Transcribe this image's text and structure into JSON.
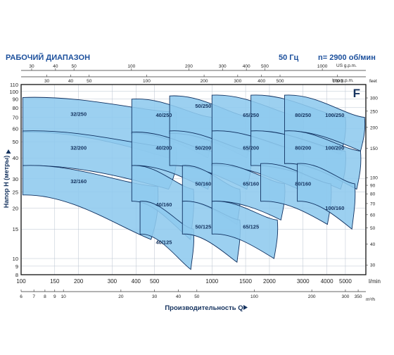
{
  "chart_data": {
    "type": "area",
    "title": "РАБОЧИЙ ДИАПАЗОН",
    "subtitle_freq": "50 Гц",
    "subtitle_speed": "n= 2900 об/мин",
    "corner_letter": "F",
    "xlabel": "Производительность Q",
    "ylabel": "Напор H (метры)",
    "x_scale": "log",
    "y_scale": "log",
    "xlim_lmin": [
      100,
      6400
    ],
    "ylim_m": [
      8,
      110
    ],
    "grid": true,
    "bottom_lmin_ticks": [
      "100",
      "150",
      "200",
      "300",
      "400",
      "500",
      "1000",
      "1500",
      "2000",
      "3000",
      "4000",
      "5000"
    ],
    "bottom_lmin_unit": "l/min",
    "bottom_m3h_ticks": [
      "6",
      "7",
      "8",
      "9",
      "10",
      "20",
      "30",
      "40",
      "50",
      "100",
      "200",
      "300",
      "350"
    ],
    "bottom_m3h_unit": "m³/h",
    "top_us_ticks": [
      "30",
      "40",
      "50",
      "100",
      "200",
      "300",
      "400",
      "500",
      "1000"
    ],
    "top_us_unit": "US g.p.m.",
    "top_imp_ticks": [
      "30",
      "40",
      "50",
      "100",
      "200",
      "300",
      "400",
      "500",
      "1000"
    ],
    "top_imp_unit": "Imp g.p.m.",
    "left_m_ticks": [
      "8",
      "9",
      "10",
      "15",
      "20",
      "25",
      "30",
      "40",
      "50",
      "60",
      "70",
      "80",
      "90",
      "100",
      "110"
    ],
    "right_feet_unit": "feet",
    "right_feet_ticks": [
      "300",
      "250",
      "200",
      "150",
      "100",
      "90",
      "80",
      "70",
      "60",
      "50",
      "40",
      "30"
    ],
    "series": [
      {
        "name": "32/250",
        "q": [
          102,
          650
        ],
        "h_top": [
          92,
          75
        ],
        "h_bot": [
          57,
          40
        ],
        "label_q": 200,
        "label_h": 73
      },
      {
        "name": "32/200",
        "q": [
          102,
          650
        ],
        "h_top": [
          58,
          46
        ],
        "h_bot": [
          36,
          26
        ],
        "label_q": 200,
        "label_h": 46
      },
      {
        "name": "32/160",
        "q": [
          102,
          520
        ],
        "h_top": [
          36,
          27
        ],
        "h_bot": [
          24,
          13
        ],
        "label_q": 200,
        "label_h": 29
      },
      {
        "name": "40/250",
        "q": [
          380,
          1000
        ],
        "h_top": [
          90,
          70
        ],
        "h_bot": [
          56,
          40
        ],
        "label_q": 560,
        "label_h": 72
      },
      {
        "name": "40/200",
        "q": [
          380,
          1000
        ],
        "h_top": [
          57,
          44
        ],
        "h_bot": [
          36,
          26
        ],
        "label_q": 560,
        "label_h": 46
      },
      {
        "name": "40/160",
        "q": [
          380,
          800
        ],
        "h_top": [
          36,
          26
        ],
        "h_bot": [
          22,
          13
        ],
        "label_q": 560,
        "label_h": 21
      },
      {
        "name": "40/125",
        "q": [
          420,
          800
        ],
        "h_top": [
          22,
          15
        ],
        "h_bot": [
          14,
          8.6
        ],
        "label_q": 560,
        "label_h": 12.5
      },
      {
        "name": "50/250",
        "q": [
          600,
          1600
        ],
        "h_top": [
          94,
          70
        ],
        "h_bot": [
          56,
          40
        ],
        "label_q": 900,
        "label_h": 82
      },
      {
        "name": "50/200",
        "q": [
          600,
          1600
        ],
        "h_top": [
          58,
          44
        ],
        "h_bot": [
          36,
          26
        ],
        "label_q": 900,
        "label_h": 46
      },
      {
        "name": "50/160",
        "q": [
          700,
          1400
        ],
        "h_top": [
          36,
          26
        ],
        "h_bot": [
          22,
          16
        ],
        "label_q": 900,
        "label_h": 28
      },
      {
        "name": "50/125",
        "q": [
          700,
          1400
        ],
        "h_top": [
          22,
          17
        ],
        "h_bot": [
          14,
          9.5
        ],
        "label_q": 900,
        "label_h": 15.5
      },
      {
        "name": "65/250",
        "q": [
          1000,
          3000
        ],
        "h_top": [
          95,
          70
        ],
        "h_bot": [
          58,
          42
        ],
        "label_q": 1600,
        "label_h": 72
      },
      {
        "name": "65/200",
        "q": [
          1000,
          3000
        ],
        "h_top": [
          58,
          44
        ],
        "h_bot": [
          36,
          26
        ],
        "label_q": 1600,
        "label_h": 46
      },
      {
        "name": "65/160",
        "q": [
          1000,
          2400
        ],
        "h_top": [
          37,
          28
        ],
        "h_bot": [
          22,
          17
        ],
        "label_q": 1600,
        "label_h": 28
      },
      {
        "name": "65/125",
        "q": [
          1000,
          2200
        ],
        "h_top": [
          22,
          17
        ],
        "h_bot": [
          14,
          10
        ],
        "label_q": 1600,
        "label_h": 15.5
      },
      {
        "name": "80/250",
        "q": [
          1600,
          5000
        ],
        "h_top": [
          95,
          70
        ],
        "h_bot": [
          58,
          42
        ],
        "label_q": 3000,
        "label_h": 72
      },
      {
        "name": "80/200",
        "q": [
          1600,
          5000
        ],
        "h_top": [
          58,
          44
        ],
        "h_bot": [
          36,
          26
        ],
        "label_q": 3000,
        "label_h": 46
      },
      {
        "name": "80/160",
        "q": [
          1800,
          4200
        ],
        "h_top": [
          37,
          28
        ],
        "h_bot": [
          22,
          16
        ],
        "label_q": 3000,
        "label_h": 28
      },
      {
        "name": "100/250",
        "q": [
          2400,
          6300
        ],
        "h_top": [
          95,
          70
        ],
        "h_bot": [
          58,
          44
        ],
        "label_q": 4400,
        "label_h": 72
      },
      {
        "name": "100/200",
        "q": [
          2400,
          6000
        ],
        "h_top": [
          58,
          44
        ],
        "h_bot": [
          37,
          26
        ],
        "label_q": 4400,
        "label_h": 46
      },
      {
        "name": "100/160",
        "q": [
          2800,
          5600
        ],
        "h_top": [
          37,
          28
        ],
        "h_bot": [
          22,
          15
        ],
        "label_q": 4400,
        "label_h": 20
      }
    ]
  }
}
